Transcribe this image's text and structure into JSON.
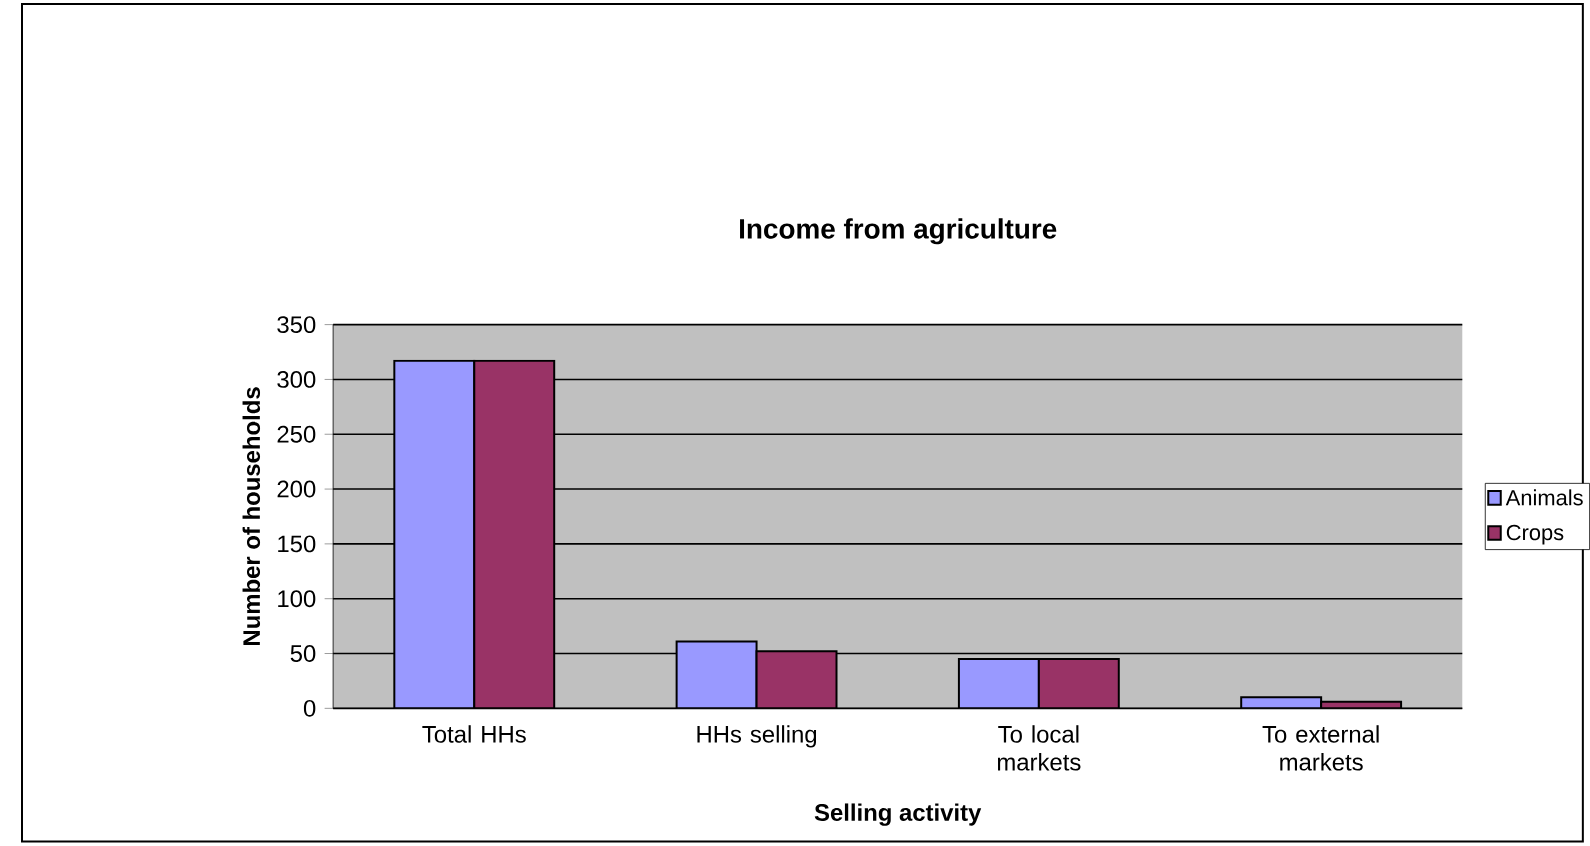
{
  "chart_data": {
    "type": "bar",
    "title": "Income from agriculture",
    "xlabel": "Selling activity",
    "ylabel": "Number of households",
    "categories": [
      "Total HHs",
      "HHs selling",
      "To local markets",
      "To external markets"
    ],
    "series": [
      {
        "name": "Animals",
        "color": "#9999ff",
        "values": [
          317,
          61,
          45,
          10
        ]
      },
      {
        "name": "Crops",
        "color": "#993366",
        "values": [
          317,
          52,
          45,
          6
        ]
      }
    ],
    "ylim": [
      0,
      350
    ],
    "yticks": [
      0,
      50,
      100,
      150,
      200,
      250,
      300,
      350
    ],
    "grid": "y",
    "legend": "right"
  }
}
